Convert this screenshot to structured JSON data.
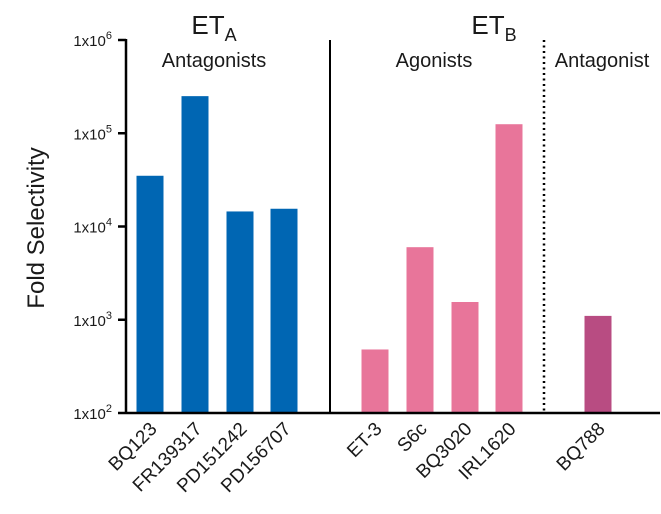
{
  "chart_data": {
    "type": "bar",
    "ylabel": "Fold Selectivity",
    "yscale": "log",
    "ylim": [
      100,
      1000000
    ],
    "y_ticks": [
      {
        "value": 100,
        "base": "1x10",
        "exp": "2"
      },
      {
        "value": 1000,
        "base": "1x10",
        "exp": "3"
      },
      {
        "value": 10000,
        "base": "1x10",
        "exp": "4"
      },
      {
        "value": 100000,
        "base": "1x10",
        "exp": "5"
      },
      {
        "value": 1000000,
        "base": "1x10",
        "exp": "6"
      }
    ],
    "categories": [
      "BQ123",
      "FR139317",
      "PD151242",
      "PD156707",
      "ET-3",
      "S6c",
      "BQ3020",
      "IRL1620",
      "BQ788"
    ],
    "values": [
      35000,
      250000,
      14500,
      15500,
      480,
      6000,
      1550,
      125000,
      1100
    ],
    "bar_colors": [
      "#0066b3",
      "#0066b3",
      "#0066b3",
      "#0066b3",
      "#e8759a",
      "#e8759a",
      "#e8759a",
      "#e8759a",
      "#b84c82"
    ],
    "groups": [
      {
        "title": "ET",
        "subscript": "A",
        "subtitle": "Antagonists"
      },
      {
        "title": "ET",
        "subscript": "B",
        "subtitle": "Agonists"
      },
      {
        "title": "",
        "subscript": "",
        "subtitle": "Antagonist"
      }
    ],
    "grid": false
  },
  "colors": {
    "eta_antagonist": "#0066b3",
    "etb_agonist": "#e8759a",
    "etb_antagonist": "#b84c82",
    "axis": "#000000"
  }
}
